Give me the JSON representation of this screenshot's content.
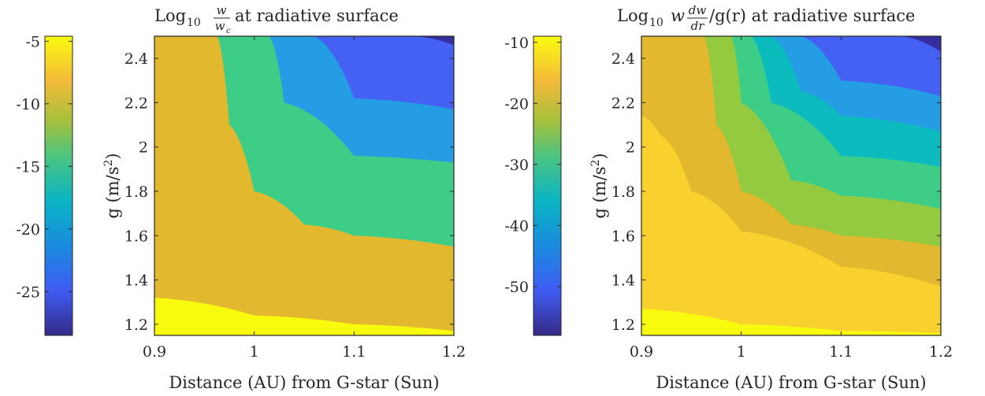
{
  "chart_data": [
    {
      "type": "contour",
      "title": {
        "lead": "Log",
        "sub": "10",
        "frac_num": "w",
        "frac_den": "w",
        "frac_den_sub": "c",
        "tail": "at radiative surface"
      },
      "xlabel": "Distance (AU) from G-star (Sun)",
      "ylabel": {
        "base": "g (m/s",
        "exp": "2",
        "close": ")"
      },
      "xlim": [
        0.9,
        1.2
      ],
      "ylim": [
        1.15,
        2.5
      ],
      "x_ticks": [
        0.9,
        1,
        1.1,
        1.2
      ],
      "x_tick_labels": [
        "0.9",
        "1",
        "1.1",
        "1.2"
      ],
      "y_ticks": [
        1.2,
        1.4,
        1.6,
        1.8,
        2,
        2.2,
        2.4
      ],
      "y_tick_labels": [
        "1.2",
        "1.4",
        "1.6",
        "1.8",
        "2",
        "2.2",
        "2.4"
      ],
      "colorbar": {
        "range": [
          -28.5,
          -4.6
        ],
        "ticks": [
          -5,
          -10,
          -15,
          -20,
          -25
        ],
        "tick_labels": [
          "-5",
          "-10",
          "-15",
          "-20",
          "-25"
        ]
      },
      "regions": [
        {
          "level": "> -7.5",
          "color": "#F9FB0E",
          "boundary_x": [
            0.9,
            1.0,
            1.1,
            1.2
          ],
          "boundary_y": [
            1.32,
            1.24,
            1.2,
            1.17
          ]
        },
        {
          "level": "-12.5 to -7.5",
          "color": "#E1B82E",
          "boundary_x": [
            0.963,
            0.975,
            1.0,
            1.05,
            1.1,
            1.2
          ],
          "boundary_y": [
            2.5,
            2.1,
            1.8,
            1.65,
            1.6,
            1.55
          ]
        },
        {
          "level": "-17.5 to -12.5",
          "color": "#3ECD87",
          "boundary_x": [
            1.015,
            1.03,
            1.1,
            1.2
          ],
          "boundary_y": [
            2.5,
            2.2,
            1.96,
            1.93
          ]
        },
        {
          "level": "-22.5 to -17.5",
          "color": "#249DE4",
          "boundary_x": [
            1.06,
            1.1,
            1.2
          ],
          "boundary_y": [
            2.5,
            2.22,
            2.17
          ]
        },
        {
          "level": "-27.5 to -22.5",
          "color": "#4561F4",
          "boundary_x": [
            1.16,
            1.2
          ],
          "boundary_y": [
            2.5,
            2.46
          ]
        },
        {
          "level": "< -27.5",
          "color": "#362DA0",
          "boundary_x": [],
          "boundary_y": []
        }
      ]
    },
    {
      "type": "contour",
      "title": {
        "lead": "Log",
        "sub": "10",
        "w": "w",
        "frac_num": "dw",
        "frac_den": "dr",
        "tail": "/g(r) at radiative surface"
      },
      "xlabel": "Distance (AU) from G-star (Sun)",
      "ylabel": {
        "base": "g (m/s",
        "exp": "2",
        "close": ")"
      },
      "xlim": [
        0.9,
        1.2
      ],
      "ylim": [
        1.15,
        2.5
      ],
      "x_ticks": [
        0.9,
        1,
        1.1,
        1.2
      ],
      "x_tick_labels": [
        "0.9",
        "1",
        "1.1",
        "1.2"
      ],
      "y_ticks": [
        1.2,
        1.4,
        1.6,
        1.8,
        2,
        2.2,
        2.4
      ],
      "y_tick_labels": [
        "1.2",
        "1.4",
        "1.6",
        "1.8",
        "2",
        "2.2",
        "2.4"
      ],
      "colorbar": {
        "range": [
          -58,
          -9
        ],
        "ticks": [
          -10,
          -20,
          -30,
          -40,
          -50
        ],
        "tick_labels": [
          "-10",
          "-20",
          "-30",
          "-40",
          "-50"
        ]
      },
      "regions": [
        {
          "level": "> -12.5",
          "color": "#F9FB0E",
          "boundary_x": [
            0.9,
            1.0,
            1.1,
            1.2
          ],
          "boundary_y": [
            1.27,
            1.2,
            1.17,
            1.16
          ]
        },
        {
          "level": "-17.5 to -12.5",
          "color": "#F8D12E",
          "boundary_x": [
            0.9,
            0.92,
            0.95,
            1.0,
            1.1,
            1.2
          ],
          "boundary_y": [
            2.14,
            2.05,
            1.8,
            1.62,
            1.46,
            1.37
          ]
        },
        {
          "level": "-22.5 to -17.5",
          "color": "#E1B82E",
          "boundary_x": [
            0.963,
            0.975,
            1.0,
            1.05,
            1.1,
            1.2
          ],
          "boundary_y": [
            2.5,
            2.1,
            1.8,
            1.65,
            1.6,
            1.55
          ]
        },
        {
          "level": "-27.5 to -22.5",
          "color": "#93CA3F",
          "boundary_x": [
            0.99,
            1.0,
            1.05,
            1.1,
            1.2
          ],
          "boundary_y": [
            2.5,
            2.2,
            1.85,
            1.78,
            1.72
          ]
        },
        {
          "level": "-32.5 to -27.5",
          "color": "#3ECD87",
          "boundary_x": [
            1.01,
            1.03,
            1.1,
            1.2
          ],
          "boundary_y": [
            2.5,
            2.2,
            1.96,
            1.91
          ]
        },
        {
          "level": "-37.5 to -32.5",
          "color": "#0CBBBE",
          "boundary_x": [
            1.03,
            1.06,
            1.1,
            1.2
          ],
          "boundary_y": [
            2.5,
            2.25,
            2.14,
            2.07
          ]
        },
        {
          "level": "-42.5 to -37.5",
          "color": "#249DE4",
          "boundary_x": [
            1.06,
            1.1,
            1.2
          ],
          "boundary_y": [
            2.5,
            2.3,
            2.23
          ]
        },
        {
          "level": "-47.5 to -42.5",
          "color": "#4561F4",
          "boundary_x": [
            1.16,
            1.2
          ],
          "boundary_y": [
            2.5,
            2.43
          ]
        },
        {
          "level": "< -47.5",
          "color": "#362DA0",
          "boundary_x": [],
          "boundary_y": []
        }
      ]
    }
  ]
}
